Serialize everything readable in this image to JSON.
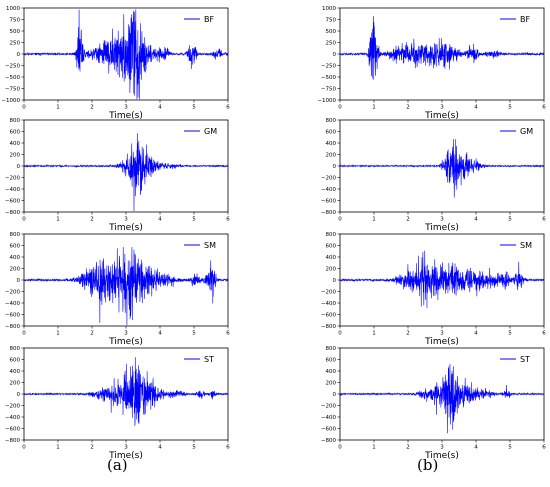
{
  "panel_labels": {
    "a": "(a)",
    "b": "(b)"
  },
  "colors": {
    "signal": "#0000ff",
    "axis": "#000000",
    "text": "#000000"
  },
  "chart_data": [
    {
      "panel": "(a)",
      "type": "line",
      "title": "",
      "series_name": "BF",
      "xlabel": "Time(s)",
      "ylabel": "",
      "xlim": [
        0,
        6
      ],
      "ylim": [
        -1000,
        1000
      ],
      "xticks": [
        0,
        1,
        2,
        3,
        4,
        5,
        6
      ],
      "yticks": [
        1000,
        750,
        500,
        250,
        0,
        -250,
        -500,
        -750,
        -1000
      ],
      "seed": 11,
      "noise": 28,
      "bursts": [
        {
          "t": 1.62,
          "w": 0.05,
          "a": 680
        },
        {
          "t": 1.68,
          "w": 0.07,
          "a": 520
        },
        {
          "t": 2.15,
          "w": 0.18,
          "a": 200
        },
        {
          "t": 2.55,
          "w": 0.18,
          "a": 330
        },
        {
          "t": 2.75,
          "w": 0.15,
          "a": 260
        },
        {
          "t": 3.05,
          "w": 0.22,
          "a": 580
        },
        {
          "t": 3.25,
          "w": 0.12,
          "a": 900
        },
        {
          "t": 3.5,
          "w": 0.2,
          "a": 450
        },
        {
          "t": 4.1,
          "w": 0.12,
          "a": 150
        },
        {
          "t": 4.95,
          "w": 0.08,
          "a": 420
        },
        {
          "t": 5.7,
          "w": 0.1,
          "a": 120
        }
      ]
    },
    {
      "panel": "(b)",
      "type": "line",
      "title": "",
      "series_name": "BF",
      "xlabel": "Time(s)",
      "ylabel": "",
      "xlim": [
        0,
        6
      ],
      "ylim": [
        -1000,
        1000
      ],
      "xticks": [
        0,
        1,
        2,
        3,
        4,
        5,
        6
      ],
      "yticks": [
        1000,
        750,
        500,
        250,
        0,
        -250,
        -500,
        -750,
        -1000
      ],
      "seed": 23,
      "noise": 28,
      "bursts": [
        {
          "t": 0.95,
          "w": 0.06,
          "a": 900
        },
        {
          "t": 1.05,
          "w": 0.07,
          "a": 350
        },
        {
          "t": 1.65,
          "w": 0.18,
          "a": 150
        },
        {
          "t": 2.2,
          "w": 0.28,
          "a": 300
        },
        {
          "t": 2.85,
          "w": 0.25,
          "a": 230
        },
        {
          "t": 3.15,
          "w": 0.25,
          "a": 200
        },
        {
          "t": 3.9,
          "w": 0.1,
          "a": 280
        },
        {
          "t": 4.5,
          "w": 0.15,
          "a": 90
        }
      ]
    },
    {
      "panel": "(a)",
      "type": "line",
      "title": "",
      "series_name": "GM",
      "xlabel": "Time(s)",
      "ylabel": "",
      "xlim": [
        0,
        6
      ],
      "ylim": [
        -800,
        800
      ],
      "xticks": [
        0,
        1,
        2,
        3,
        4,
        5,
        6
      ],
      "yticks": [
        800,
        600,
        400,
        200,
        0,
        -200,
        -400,
        -600,
        -800
      ],
      "seed": 37,
      "noise": 16,
      "bursts": [
        {
          "t": 3.2,
          "w": 0.22,
          "a": 260
        },
        {
          "t": 3.38,
          "w": 0.12,
          "a": 500
        },
        {
          "t": 3.6,
          "w": 0.25,
          "a": 220
        },
        {
          "t": 4.3,
          "w": 0.2,
          "a": 40
        }
      ]
    },
    {
      "panel": "(b)",
      "type": "line",
      "title": "",
      "series_name": "GM",
      "xlabel": "Time(s)",
      "ylabel": "",
      "xlim": [
        0,
        6
      ],
      "ylim": [
        -800,
        800
      ],
      "xticks": [
        0,
        1,
        2,
        3,
        4,
        5,
        6
      ],
      "yticks": [
        800,
        600,
        400,
        200,
        0,
        -200,
        -400,
        -600,
        -800
      ],
      "seed": 41,
      "noise": 14,
      "bursts": [
        {
          "t": 3.3,
          "w": 0.15,
          "a": 420
        },
        {
          "t": 3.55,
          "w": 0.25,
          "a": 220
        },
        {
          "t": 3.95,
          "w": 0.2,
          "a": 80
        }
      ]
    },
    {
      "panel": "(a)",
      "type": "line",
      "title": "",
      "series_name": "SM",
      "xlabel": "Time(s)",
      "ylabel": "",
      "xlim": [
        0,
        6
      ],
      "ylim": [
        -800,
        800
      ],
      "xticks": [
        0,
        1,
        2,
        3,
        4,
        5,
        6
      ],
      "yticks": [
        800,
        600,
        400,
        200,
        0,
        -200,
        -400,
        -600,
        -800
      ],
      "seed": 53,
      "noise": 22,
      "bursts": [
        {
          "t": 2.1,
          "w": 0.3,
          "a": 300
        },
        {
          "t": 2.7,
          "w": 0.35,
          "a": 380
        },
        {
          "t": 3.1,
          "w": 0.2,
          "a": 650
        },
        {
          "t": 3.6,
          "w": 0.3,
          "a": 300
        },
        {
          "t": 4.2,
          "w": 0.2,
          "a": 90
        },
        {
          "t": 5.05,
          "w": 0.12,
          "a": 120
        },
        {
          "t": 5.45,
          "w": 0.1,
          "a": 180
        },
        {
          "t": 5.55,
          "w": 0.05,
          "a": 420
        }
      ]
    },
    {
      "panel": "(b)",
      "type": "line",
      "title": "",
      "series_name": "SM",
      "xlabel": "Time(s)",
      "ylabel": "",
      "xlim": [
        0,
        6
      ],
      "ylim": [
        -800,
        800
      ],
      "xticks": [
        0,
        1,
        2,
        3,
        4,
        5,
        6
      ],
      "yticks": [
        800,
        600,
        400,
        200,
        0,
        -200,
        -400,
        -600,
        -800
      ],
      "seed": 67,
      "noise": 20,
      "bursts": [
        {
          "t": 2.0,
          "w": 0.25,
          "a": 180
        },
        {
          "t": 2.45,
          "w": 0.2,
          "a": 400
        },
        {
          "t": 2.9,
          "w": 0.25,
          "a": 250
        },
        {
          "t": 3.4,
          "w": 0.25,
          "a": 330
        },
        {
          "t": 3.9,
          "w": 0.2,
          "a": 200
        },
        {
          "t": 4.35,
          "w": 0.15,
          "a": 180
        },
        {
          "t": 4.8,
          "w": 0.12,
          "a": 200
        },
        {
          "t": 5.25,
          "w": 0.1,
          "a": 210
        }
      ]
    },
    {
      "panel": "(a)",
      "type": "line",
      "title": "",
      "series_name": "ST",
      "xlabel": "Time(s)",
      "ylabel": "",
      "xlim": [
        0,
        6
      ],
      "ylim": [
        -800,
        800
      ],
      "xticks": [
        0,
        1,
        2,
        3,
        4,
        5,
        6
      ],
      "yticks": [
        800,
        600,
        400,
        200,
        0,
        -200,
        -400,
        -600,
        -800
      ],
      "seed": 79,
      "noise": 18,
      "bursts": [
        {
          "t": 2.4,
          "w": 0.25,
          "a": 120
        },
        {
          "t": 2.95,
          "w": 0.25,
          "a": 300
        },
        {
          "t": 3.3,
          "w": 0.18,
          "a": 520
        },
        {
          "t": 3.7,
          "w": 0.25,
          "a": 280
        },
        {
          "t": 4.5,
          "w": 0.15,
          "a": 70
        },
        {
          "t": 5.2,
          "w": 0.08,
          "a": 90
        },
        {
          "t": 5.55,
          "w": 0.05,
          "a": 110
        }
      ]
    },
    {
      "panel": "(b)",
      "type": "line",
      "title": "",
      "series_name": "ST",
      "xlabel": "Time(s)",
      "ylabel": "",
      "xlim": [
        0,
        6
      ],
      "ylim": [
        -800,
        800
      ],
      "xticks": [
        0,
        1,
        2,
        3,
        4,
        5,
        6
      ],
      "yticks": [
        800,
        600,
        400,
        200,
        0,
        -200,
        -400,
        -600,
        -800
      ],
      "seed": 97,
      "noise": 16,
      "bursts": [
        {
          "t": 2.7,
          "w": 0.25,
          "a": 150
        },
        {
          "t": 3.1,
          "w": 0.15,
          "a": 350
        },
        {
          "t": 3.3,
          "w": 0.1,
          "a": 600
        },
        {
          "t": 3.6,
          "w": 0.25,
          "a": 280
        },
        {
          "t": 4.2,
          "w": 0.2,
          "a": 90
        },
        {
          "t": 4.9,
          "w": 0.08,
          "a": 90
        }
      ]
    }
  ]
}
